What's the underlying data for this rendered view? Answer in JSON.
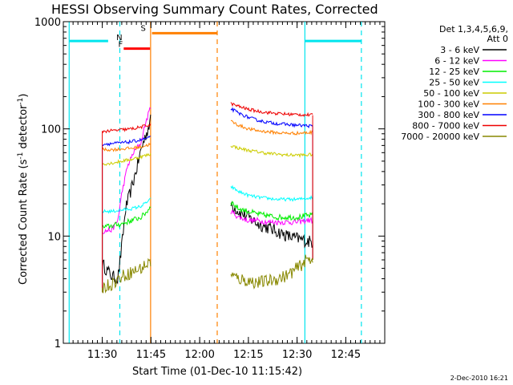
{
  "chart_data": {
    "type": "line",
    "title": "HESSI Observing Summary Count Rates, Corrected",
    "xlabel": "Start Time (01-Dec-10 11:15:42)",
    "ylabel_main": "Corrected Count Rate (s",
    "ylabel_sup1": "-1",
    "ylabel_mid": " detector",
    "ylabel_sup2": "-1",
    "ylabel_end": ")",
    "yscale": "log",
    "ylim": [
      1,
      1000
    ],
    "xlim_minutes": [
      11.3,
      12.95
    ],
    "x_tick_labels": [
      "11:30",
      "11:45",
      "12:00",
      "12:15",
      "12:30",
      "12:45"
    ],
    "x_tick_values": [
      11.5,
      11.75,
      12.0,
      12.25,
      12.5,
      12.75
    ],
    "y_tick_labels": [
      "1",
      "10",
      "100",
      "1000"
    ],
    "y_tick_values": [
      1,
      10,
      100,
      1000
    ],
    "legend_header": [
      "Det 1,3,4,5,6,9,",
      "Att 0"
    ],
    "legend_placement": "right",
    "footer_timestamp": "2-Dec-2010 16:21",
    "flag_bars": [
      {
        "label": "F",
        "color": "#ff0000",
        "x_start": 11.61,
        "x_end": 11.745,
        "y": 560
      },
      {
        "label": "N",
        "color": "#00e5ee",
        "x_start": 11.33,
        "x_end": 11.53,
        "y": 660
      },
      {
        "label": "N",
        "color": "#00e5ee",
        "x_start": 12.54,
        "x_end": 12.83,
        "y": 660
      },
      {
        "label": "S",
        "color": "#ff8000",
        "x_start": 11.755,
        "x_end": 12.09,
        "y": 780
      }
    ],
    "vertical_lines": [
      {
        "x": 11.33,
        "color": "#00e5ee",
        "style": "solid"
      },
      {
        "x": 11.59,
        "color": "#00e5ee",
        "style": "dashed"
      },
      {
        "x": 11.748,
        "color": "#ff8000",
        "style": "solid"
      },
      {
        "x": 12.09,
        "color": "#ff8000",
        "style": "dashed"
      },
      {
        "x": 12.54,
        "color": "#00e5ee",
        "style": "solid"
      },
      {
        "x": 12.83,
        "color": "#00e5ee",
        "style": "dashed"
      }
    ],
    "series": [
      {
        "name": "3 - 6 keV",
        "color": "#000000",
        "seg1": [
          [
            11.5,
            5.5
          ],
          [
            11.55,
            4.2
          ],
          [
            11.58,
            4.0
          ],
          [
            11.6,
            8
          ],
          [
            11.62,
            18
          ],
          [
            11.65,
            28
          ],
          [
            11.68,
            45
          ],
          [
            11.7,
            65
          ],
          [
            11.73,
            95
          ],
          [
            11.748,
            120
          ]
        ],
        "seg2": [
          [
            12.16,
            20
          ],
          [
            12.2,
            17
          ],
          [
            12.25,
            15
          ],
          [
            12.3,
            13
          ],
          [
            12.35,
            12
          ],
          [
            12.4,
            11
          ],
          [
            12.45,
            10
          ],
          [
            12.5,
            9.5
          ],
          [
            12.55,
            9
          ],
          [
            12.58,
            8.8
          ]
        ]
      },
      {
        "name": "6 - 12 keV",
        "color": "#ff00ff",
        "seg1": [
          [
            11.5,
            11
          ],
          [
            11.55,
            11.5
          ],
          [
            11.58,
            14
          ],
          [
            11.6,
            25
          ],
          [
            11.63,
            45
          ],
          [
            11.66,
            60
          ],
          [
            11.7,
            75
          ],
          [
            11.72,
            110
          ],
          [
            11.748,
            160
          ]
        ],
        "seg2": [
          [
            12.16,
            17
          ],
          [
            12.2,
            15
          ],
          [
            12.25,
            14
          ],
          [
            12.3,
            14
          ],
          [
            12.35,
            13.5
          ],
          [
            12.4,
            13.5
          ],
          [
            12.45,
            13.5
          ],
          [
            12.5,
            13.5
          ],
          [
            12.55,
            14
          ],
          [
            12.58,
            14
          ]
        ]
      },
      {
        "name": "12 - 25 keV",
        "color": "#00ee00",
        "seg1": [
          [
            11.5,
            12
          ],
          [
            11.55,
            12.5
          ],
          [
            11.6,
            13
          ],
          [
            11.65,
            14
          ],
          [
            11.7,
            15
          ],
          [
            11.73,
            17
          ],
          [
            11.748,
            19
          ]
        ],
        "seg2": [
          [
            12.16,
            21
          ],
          [
            12.2,
            18
          ],
          [
            12.25,
            17
          ],
          [
            12.3,
            16
          ],
          [
            12.35,
            15.5
          ],
          [
            12.4,
            15
          ],
          [
            12.45,
            15
          ],
          [
            12.5,
            15
          ],
          [
            12.55,
            15.5
          ],
          [
            12.58,
            15.5
          ]
        ]
      },
      {
        "name": "25 - 50 keV",
        "color": "#00ffff",
        "seg1": [
          [
            11.5,
            17
          ],
          [
            11.55,
            17
          ],
          [
            11.6,
            17.5
          ],
          [
            11.65,
            18
          ],
          [
            11.7,
            19
          ],
          [
            11.748,
            22
          ]
        ],
        "seg2": [
          [
            12.16,
            29
          ],
          [
            12.2,
            26
          ],
          [
            12.25,
            24
          ],
          [
            12.3,
            23
          ],
          [
            12.35,
            22.5
          ],
          [
            12.4,
            22
          ],
          [
            12.45,
            22
          ],
          [
            12.5,
            22
          ],
          [
            12.55,
            22.5
          ],
          [
            12.58,
            23
          ]
        ]
      },
      {
        "name": "50 - 100 keV",
        "color": "#cccc00",
        "seg1": [
          [
            11.5,
            47
          ],
          [
            11.55,
            48
          ],
          [
            11.6,
            50
          ],
          [
            11.65,
            52
          ],
          [
            11.7,
            55
          ],
          [
            11.748,
            58
          ]
        ],
        "seg2": [
          [
            12.16,
            70
          ],
          [
            12.2,
            66
          ],
          [
            12.25,
            63
          ],
          [
            12.3,
            61
          ],
          [
            12.35,
            59
          ],
          [
            12.4,
            58
          ],
          [
            12.45,
            57
          ],
          [
            12.5,
            57
          ],
          [
            12.55,
            57
          ],
          [
            12.58,
            58
          ]
        ]
      },
      {
        "name": "100 - 300 keV",
        "color": "#ff8000",
        "seg1": [
          [
            11.5,
            64
          ],
          [
            11.55,
            64
          ],
          [
            11.6,
            65
          ],
          [
            11.65,
            66
          ],
          [
            11.7,
            68
          ],
          [
            11.748,
            72
          ]
        ],
        "seg2": [
          [
            12.16,
            118
          ],
          [
            12.2,
            108
          ],
          [
            12.25,
            100
          ],
          [
            12.3,
            96
          ],
          [
            12.35,
            94
          ],
          [
            12.4,
            92
          ],
          [
            12.45,
            91
          ],
          [
            12.5,
            91
          ],
          [
            12.55,
            92
          ],
          [
            12.58,
            93
          ]
        ]
      },
      {
        "name": "300 - 800 keV",
        "color": "#0000ff",
        "seg1": [
          [
            11.5,
            72
          ],
          [
            11.55,
            73
          ],
          [
            11.6,
            74
          ],
          [
            11.65,
            76
          ],
          [
            11.7,
            79
          ],
          [
            11.748,
            83
          ]
        ],
        "seg2": [
          [
            12.16,
            155
          ],
          [
            12.2,
            140
          ],
          [
            12.25,
            128
          ],
          [
            12.3,
            120
          ],
          [
            12.35,
            115
          ],
          [
            12.4,
            112
          ],
          [
            12.45,
            110
          ],
          [
            12.5,
            108
          ],
          [
            12.55,
            107
          ],
          [
            12.58,
            106
          ]
        ]
      },
      {
        "name": "800 - 7000 keV",
        "color": "#ee0000",
        "seg1": [
          [
            11.5,
            95
          ],
          [
            11.55,
            96
          ],
          [
            11.6,
            98
          ],
          [
            11.65,
            100
          ],
          [
            11.7,
            104
          ],
          [
            11.748,
            110
          ]
        ],
        "seg2": [
          [
            12.16,
            172
          ],
          [
            12.2,
            162
          ],
          [
            12.25,
            152
          ],
          [
            12.3,
            146
          ],
          [
            12.35,
            142
          ],
          [
            12.4,
            139
          ],
          [
            12.45,
            137
          ],
          [
            12.5,
            136
          ],
          [
            12.55,
            135
          ],
          [
            12.58,
            134
          ]
        ]
      },
      {
        "name": "7000 - 20000 keV",
        "color": "#888800",
        "seg1": [
          [
            11.5,
            3.3
          ],
          [
            11.55,
            3.6
          ],
          [
            11.6,
            4.2
          ],
          [
            11.65,
            4.6
          ],
          [
            11.7,
            5.0
          ],
          [
            11.748,
            5.8
          ]
        ],
        "seg2": [
          [
            12.16,
            4.3
          ],
          [
            12.2,
            4.0
          ],
          [
            12.25,
            3.8
          ],
          [
            12.3,
            3.7
          ],
          [
            12.35,
            3.8
          ],
          [
            12.4,
            4.0
          ],
          [
            12.45,
            4.3
          ],
          [
            12.5,
            5.0
          ],
          [
            12.55,
            6.0
          ],
          [
            12.58,
            6.2
          ]
        ]
      }
    ]
  }
}
